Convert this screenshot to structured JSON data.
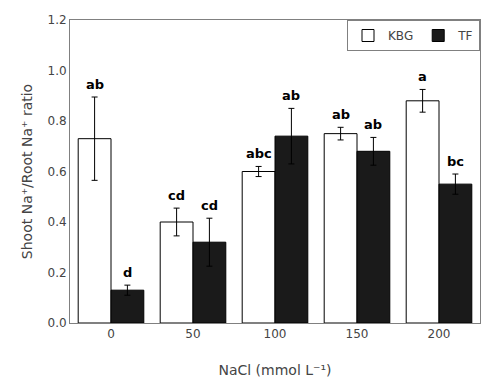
{
  "chart_data": {
    "type": "bar",
    "categories": [
      0,
      50,
      100,
      150,
      200
    ],
    "series": [
      {
        "name": "KBG",
        "color": "#ffffff",
        "values": [
          0.73,
          0.4,
          0.6,
          0.75,
          0.88
        ],
        "errors": [
          0.165,
          0.055,
          0.02,
          0.025,
          0.045
        ],
        "labels": [
          "ab",
          "cd",
          "abc",
          "ab",
          "a"
        ]
      },
      {
        "name": "TF",
        "color": "#1a1a1a",
        "values": [
          0.13,
          0.32,
          0.74,
          0.68,
          0.55
        ],
        "errors": [
          0.02,
          0.095,
          0.11,
          0.055,
          0.04
        ],
        "labels": [
          "d",
          "cd",
          "ab",
          "ab",
          "bc"
        ]
      }
    ],
    "xlabel": "NaCl (mmol L⁻¹)",
    "ylabel": "Shoot Na⁺/Root Na⁺ ratio",
    "ylim": [
      0.0,
      1.2
    ],
    "yticks": [
      {
        "value": 0,
        "label": "0.0"
      },
      0.2,
      0.4,
      0.6,
      0.8,
      {
        "value": 1,
        "label": "1.0"
      },
      1.2
    ],
    "legend": "upper right",
    "grid": false
  }
}
